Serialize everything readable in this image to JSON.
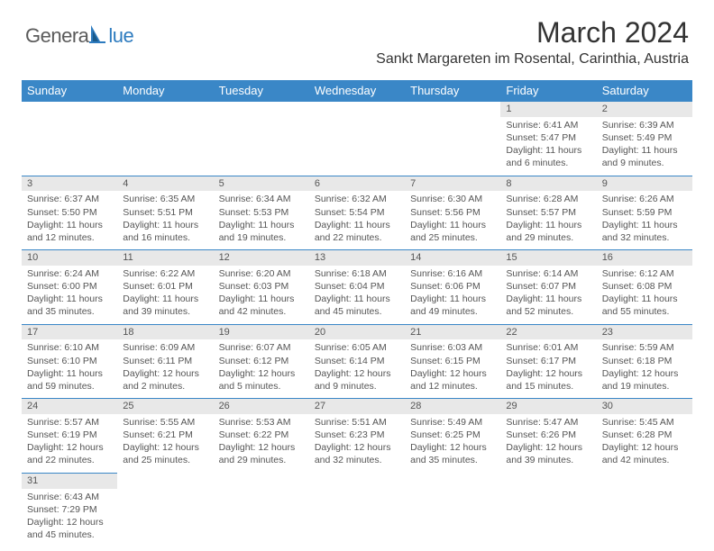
{
  "logo": {
    "part1": "Genera",
    "part2": "lue"
  },
  "title": "March 2024",
  "location": "Sankt Margareten im Rosental, Carinthia, Austria",
  "colors": {
    "header_bg": "#3a87c7",
    "header_text": "#ffffff",
    "daynum_bg": "#e8e8e8",
    "text": "#555555",
    "logo_blue": "#2d7bbf",
    "logo_gray": "#5a5a5a"
  },
  "daysOfWeek": [
    "Sunday",
    "Monday",
    "Tuesday",
    "Wednesday",
    "Thursday",
    "Friday",
    "Saturday"
  ],
  "weeks": [
    [
      null,
      null,
      null,
      null,
      null,
      {
        "n": "1",
        "sr": "Sunrise: 6:41 AM",
        "ss": "Sunset: 5:47 PM",
        "dl1": "Daylight: 11 hours",
        "dl2": "and 6 minutes."
      },
      {
        "n": "2",
        "sr": "Sunrise: 6:39 AM",
        "ss": "Sunset: 5:49 PM",
        "dl1": "Daylight: 11 hours",
        "dl2": "and 9 minutes."
      }
    ],
    [
      {
        "n": "3",
        "sr": "Sunrise: 6:37 AM",
        "ss": "Sunset: 5:50 PM",
        "dl1": "Daylight: 11 hours",
        "dl2": "and 12 minutes."
      },
      {
        "n": "4",
        "sr": "Sunrise: 6:35 AM",
        "ss": "Sunset: 5:51 PM",
        "dl1": "Daylight: 11 hours",
        "dl2": "and 16 minutes."
      },
      {
        "n": "5",
        "sr": "Sunrise: 6:34 AM",
        "ss": "Sunset: 5:53 PM",
        "dl1": "Daylight: 11 hours",
        "dl2": "and 19 minutes."
      },
      {
        "n": "6",
        "sr": "Sunrise: 6:32 AM",
        "ss": "Sunset: 5:54 PM",
        "dl1": "Daylight: 11 hours",
        "dl2": "and 22 minutes."
      },
      {
        "n": "7",
        "sr": "Sunrise: 6:30 AM",
        "ss": "Sunset: 5:56 PM",
        "dl1": "Daylight: 11 hours",
        "dl2": "and 25 minutes."
      },
      {
        "n": "8",
        "sr": "Sunrise: 6:28 AM",
        "ss": "Sunset: 5:57 PM",
        "dl1": "Daylight: 11 hours",
        "dl2": "and 29 minutes."
      },
      {
        "n": "9",
        "sr": "Sunrise: 6:26 AM",
        "ss": "Sunset: 5:59 PM",
        "dl1": "Daylight: 11 hours",
        "dl2": "and 32 minutes."
      }
    ],
    [
      {
        "n": "10",
        "sr": "Sunrise: 6:24 AM",
        "ss": "Sunset: 6:00 PM",
        "dl1": "Daylight: 11 hours",
        "dl2": "and 35 minutes."
      },
      {
        "n": "11",
        "sr": "Sunrise: 6:22 AM",
        "ss": "Sunset: 6:01 PM",
        "dl1": "Daylight: 11 hours",
        "dl2": "and 39 minutes."
      },
      {
        "n": "12",
        "sr": "Sunrise: 6:20 AM",
        "ss": "Sunset: 6:03 PM",
        "dl1": "Daylight: 11 hours",
        "dl2": "and 42 minutes."
      },
      {
        "n": "13",
        "sr": "Sunrise: 6:18 AM",
        "ss": "Sunset: 6:04 PM",
        "dl1": "Daylight: 11 hours",
        "dl2": "and 45 minutes."
      },
      {
        "n": "14",
        "sr": "Sunrise: 6:16 AM",
        "ss": "Sunset: 6:06 PM",
        "dl1": "Daylight: 11 hours",
        "dl2": "and 49 minutes."
      },
      {
        "n": "15",
        "sr": "Sunrise: 6:14 AM",
        "ss": "Sunset: 6:07 PM",
        "dl1": "Daylight: 11 hours",
        "dl2": "and 52 minutes."
      },
      {
        "n": "16",
        "sr": "Sunrise: 6:12 AM",
        "ss": "Sunset: 6:08 PM",
        "dl1": "Daylight: 11 hours",
        "dl2": "and 55 minutes."
      }
    ],
    [
      {
        "n": "17",
        "sr": "Sunrise: 6:10 AM",
        "ss": "Sunset: 6:10 PM",
        "dl1": "Daylight: 11 hours",
        "dl2": "and 59 minutes."
      },
      {
        "n": "18",
        "sr": "Sunrise: 6:09 AM",
        "ss": "Sunset: 6:11 PM",
        "dl1": "Daylight: 12 hours",
        "dl2": "and 2 minutes."
      },
      {
        "n": "19",
        "sr": "Sunrise: 6:07 AM",
        "ss": "Sunset: 6:12 PM",
        "dl1": "Daylight: 12 hours",
        "dl2": "and 5 minutes."
      },
      {
        "n": "20",
        "sr": "Sunrise: 6:05 AM",
        "ss": "Sunset: 6:14 PM",
        "dl1": "Daylight: 12 hours",
        "dl2": "and 9 minutes."
      },
      {
        "n": "21",
        "sr": "Sunrise: 6:03 AM",
        "ss": "Sunset: 6:15 PM",
        "dl1": "Daylight: 12 hours",
        "dl2": "and 12 minutes."
      },
      {
        "n": "22",
        "sr": "Sunrise: 6:01 AM",
        "ss": "Sunset: 6:17 PM",
        "dl1": "Daylight: 12 hours",
        "dl2": "and 15 minutes."
      },
      {
        "n": "23",
        "sr": "Sunrise: 5:59 AM",
        "ss": "Sunset: 6:18 PM",
        "dl1": "Daylight: 12 hours",
        "dl2": "and 19 minutes."
      }
    ],
    [
      {
        "n": "24",
        "sr": "Sunrise: 5:57 AM",
        "ss": "Sunset: 6:19 PM",
        "dl1": "Daylight: 12 hours",
        "dl2": "and 22 minutes."
      },
      {
        "n": "25",
        "sr": "Sunrise: 5:55 AM",
        "ss": "Sunset: 6:21 PM",
        "dl1": "Daylight: 12 hours",
        "dl2": "and 25 minutes."
      },
      {
        "n": "26",
        "sr": "Sunrise: 5:53 AM",
        "ss": "Sunset: 6:22 PM",
        "dl1": "Daylight: 12 hours",
        "dl2": "and 29 minutes."
      },
      {
        "n": "27",
        "sr": "Sunrise: 5:51 AM",
        "ss": "Sunset: 6:23 PM",
        "dl1": "Daylight: 12 hours",
        "dl2": "and 32 minutes."
      },
      {
        "n": "28",
        "sr": "Sunrise: 5:49 AM",
        "ss": "Sunset: 6:25 PM",
        "dl1": "Daylight: 12 hours",
        "dl2": "and 35 minutes."
      },
      {
        "n": "29",
        "sr": "Sunrise: 5:47 AM",
        "ss": "Sunset: 6:26 PM",
        "dl1": "Daylight: 12 hours",
        "dl2": "and 39 minutes."
      },
      {
        "n": "30",
        "sr": "Sunrise: 5:45 AM",
        "ss": "Sunset: 6:28 PM",
        "dl1": "Daylight: 12 hours",
        "dl2": "and 42 minutes."
      }
    ],
    [
      {
        "n": "31",
        "sr": "Sunrise: 6:43 AM",
        "ss": "Sunset: 7:29 PM",
        "dl1": "Daylight: 12 hours",
        "dl2": "and 45 minutes."
      },
      null,
      null,
      null,
      null,
      null,
      null
    ]
  ]
}
